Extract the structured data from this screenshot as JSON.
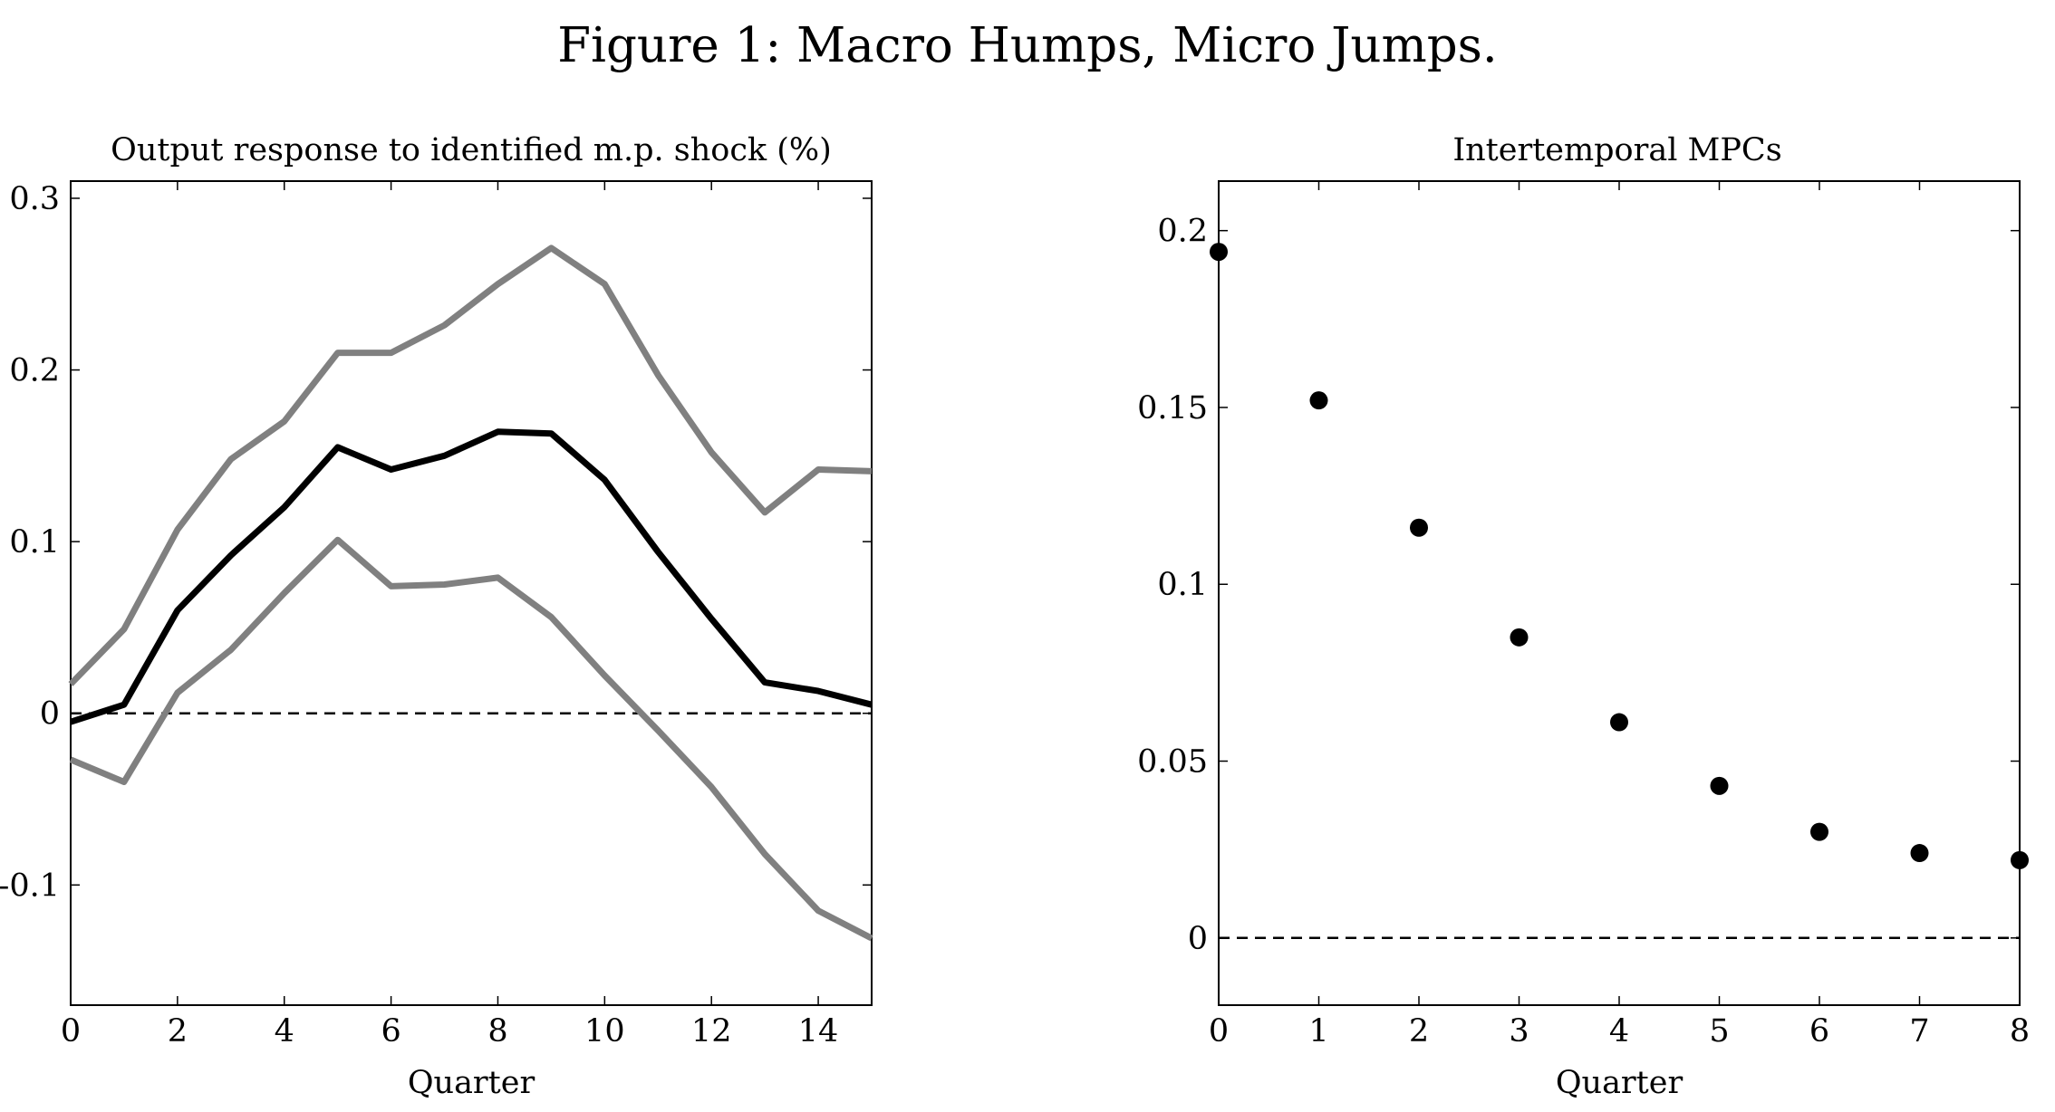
{
  "figure_title": "Figure 1: Macro Humps, Micro Jumps.",
  "chart_data": [
    {
      "type": "line",
      "title": "Output response to identified m.p. shock (%)",
      "xlabel": "Quarter",
      "ylabel": "",
      "xlim": [
        0,
        15
      ],
      "ylim": [
        -0.17,
        0.31
      ],
      "xticks": [
        0,
        2,
        4,
        6,
        8,
        10,
        12,
        14
      ],
      "xtick_labels": [
        "0",
        "2",
        "4",
        "6",
        "8",
        "10",
        "12",
        "14"
      ],
      "yticks": [
        -0.1,
        0,
        0.1,
        0.2,
        0.3
      ],
      "ytick_labels": [
        "-0.1",
        "0",
        "0.1",
        "0.2",
        "0.3"
      ],
      "reference_line": {
        "y": 0,
        "style": "dashed"
      },
      "grid": false,
      "colors": {
        "point_estimate": "#000000",
        "bands": "#808080"
      },
      "x": [
        0,
        1,
        2,
        3,
        4,
        5,
        6,
        7,
        8,
        9,
        10,
        11,
        12,
        13,
        14,
        15
      ],
      "series": [
        {
          "role": "upper-band",
          "values": [
            0.017,
            0.049,
            0.107,
            0.148,
            0.17,
            0.21,
            0.21,
            0.226,
            0.25,
            0.271,
            0.25,
            0.197,
            0.152,
            0.117,
            0.142,
            0.141
          ]
        },
        {
          "role": "point-estimate",
          "values": [
            -0.005,
            0.005,
            0.06,
            0.092,
            0.12,
            0.155,
            0.142,
            0.15,
            0.164,
            0.163,
            0.136,
            0.094,
            0.055,
            0.018,
            0.013,
            0.005
          ]
        },
        {
          "role": "lower-band",
          "values": [
            -0.027,
            -0.04,
            0.012,
            0.037,
            0.07,
            0.101,
            0.074,
            0.075,
            0.079,
            0.056,
            0.022,
            -0.01,
            -0.043,
            -0.082,
            -0.115,
            -0.131
          ]
        }
      ]
    },
    {
      "type": "scatter",
      "title": "Intertemporal MPCs",
      "xlabel": "Quarter",
      "ylabel": "",
      "xlim": [
        0,
        8
      ],
      "ylim": [
        -0.019,
        0.214
      ],
      "xticks": [
        0,
        1,
        2,
        3,
        4,
        5,
        6,
        7,
        8
      ],
      "xtick_labels": [
        "0",
        "1",
        "2",
        "3",
        "4",
        "5",
        "6",
        "7",
        "8"
      ],
      "yticks": [
        0,
        0.05,
        0.1,
        0.15,
        0.2
      ],
      "ytick_labels": [
        "0",
        "0.05",
        "0.1",
        "0.15",
        "0.2"
      ],
      "reference_line": {
        "y": 0,
        "style": "dashed"
      },
      "grid": false,
      "colors": {
        "points": "#000000"
      },
      "x": [
        0,
        1,
        2,
        3,
        4,
        5,
        6,
        7,
        8
      ],
      "y": [
        0.194,
        0.152,
        0.116,
        0.085,
        0.061,
        0.043,
        0.03,
        0.024,
        0.022
      ]
    }
  ]
}
